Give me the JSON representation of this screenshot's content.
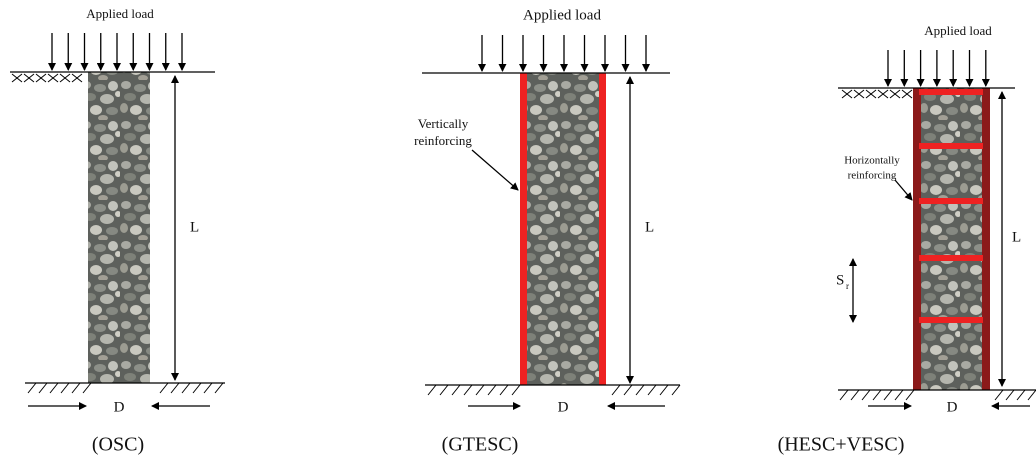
{
  "panels": [
    {
      "load_label": "Applied load",
      "length_label": "L",
      "diameter_label": "D",
      "caption": "(OSC)"
    },
    {
      "load_label": "Applied load",
      "reinforcement_label": [
        "Vertically",
        "reinforcing"
      ],
      "length_label": "L",
      "diameter_label": "D",
      "caption": "(GTESC)"
    },
    {
      "load_label": "Applied load",
      "reinforcement_label": [
        "Horizontally",
        "reinforcing"
      ],
      "length_label": "L",
      "spacing_label": {
        "symbol": "S",
        "subscript": "r"
      },
      "diameter_label": "D",
      "caption": "(HESC+VESC)"
    }
  ]
}
